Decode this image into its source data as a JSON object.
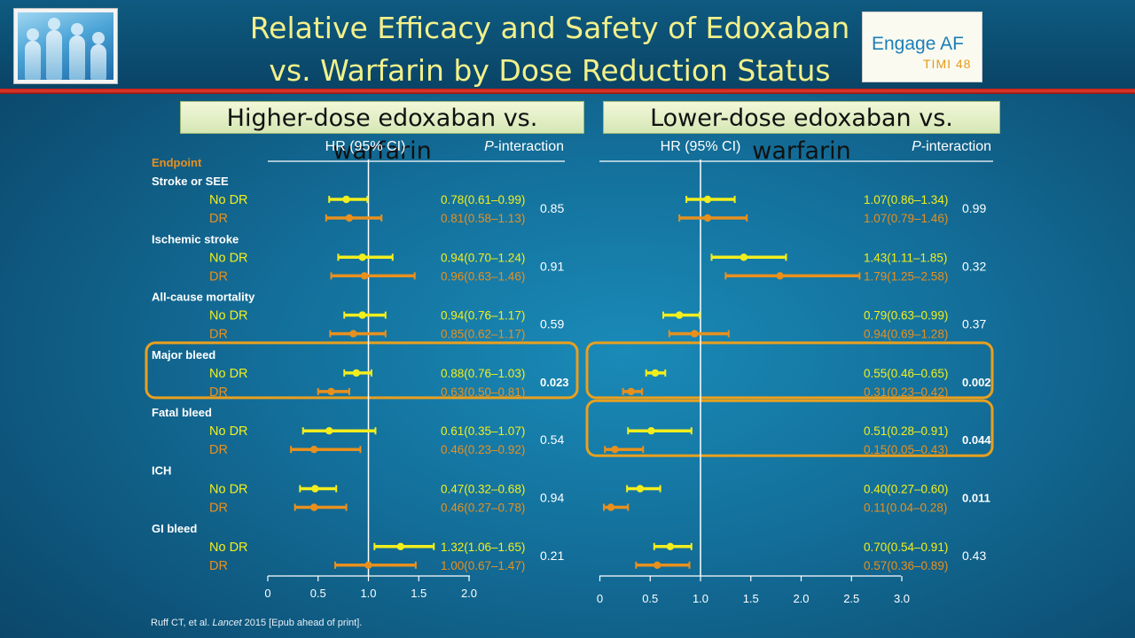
{
  "title_line1": "Relative Efficacy and Safety of Edoxaban",
  "title_line2": "vs. Warfarin by Dose Reduction Status",
  "logo_right": {
    "line1": "Engage AF",
    "line2": "TIMI 48"
  },
  "panels": [
    {
      "header": "Higher-dose edoxaban vs. warfarin"
    },
    {
      "header": "Lower-dose edoxaban vs. warfarin"
    }
  ],
  "footnote": {
    "authors": "Ruff CT, et al.",
    "journal": "Lancet",
    "rest": "2015 [Epub ahead of print]."
  },
  "colors": {
    "no_dr": "#f2ee1e",
    "dr": "#e8901e",
    "highlight": "#e8a020",
    "title": "#f2f08a"
  },
  "chart_data": {
    "type": "forest",
    "endpoint_label": "Endpoint",
    "column_hr_label": "HR (95% CI)",
    "column_p_label_italic": "P",
    "column_p_label_rest": "-interaction",
    "groups": [
      "No DR",
      "DR"
    ],
    "panels": [
      {
        "name": "Higher-dose edoxaban vs. warfarin",
        "xlim": [
          0,
          2.0
        ],
        "ticks": [
          "0",
          "0.5",
          "1.0",
          "1.5",
          "2.0"
        ],
        "tick_values": [
          0,
          0.5,
          1.0,
          1.5,
          2.0
        ],
        "endpoints": [
          {
            "name": "Stroke or SEE",
            "p": "0.85",
            "bold": false,
            "highlight": false,
            "rows": [
              {
                "group": "No DR",
                "hr": 0.78,
                "lo": 0.61,
                "hi": 0.99,
                "text": "0.78(0.61–0.99)"
              },
              {
                "group": "DR",
                "hr": 0.81,
                "lo": 0.58,
                "hi": 1.13,
                "text": "0.81(0.58–1.13)"
              }
            ]
          },
          {
            "name": "Ischemic stroke",
            "p": "0.91",
            "bold": false,
            "highlight": false,
            "rows": [
              {
                "group": "No DR",
                "hr": 0.94,
                "lo": 0.7,
                "hi": 1.24,
                "text": "0.94(0.70–1.24)"
              },
              {
                "group": "DR",
                "hr": 0.96,
                "lo": 0.63,
                "hi": 1.46,
                "text": "0.96(0.63–1.46)"
              }
            ]
          },
          {
            "name": "All-cause mortality",
            "p": "0.59",
            "bold": false,
            "highlight": false,
            "rows": [
              {
                "group": "No DR",
                "hr": 0.94,
                "lo": 0.76,
                "hi": 1.17,
                "text": "0.94(0.76–1.17)"
              },
              {
                "group": "DR",
                "hr": 0.85,
                "lo": 0.62,
                "hi": 1.17,
                "text": "0.85(0.62–1.17)"
              }
            ]
          },
          {
            "name": "Major bleed",
            "p": "0.023",
            "bold": true,
            "highlight": true,
            "rows": [
              {
                "group": "No DR",
                "hr": 0.88,
                "lo": 0.76,
                "hi": 1.03,
                "text": "0.88(0.76–1.03)"
              },
              {
                "group": "DR",
                "hr": 0.63,
                "lo": 0.5,
                "hi": 0.81,
                "text": "0.63(0.50–0.81)"
              }
            ]
          },
          {
            "name": "Fatal bleed",
            "p": "0.54",
            "bold": false,
            "highlight": false,
            "rows": [
              {
                "group": "No DR",
                "hr": 0.61,
                "lo": 0.35,
                "hi": 1.07,
                "text": "0.61(0.35–1.07)"
              },
              {
                "group": "DR",
                "hr": 0.46,
                "lo": 0.23,
                "hi": 0.92,
                "text": "0.46(0.23–0.92)"
              }
            ]
          },
          {
            "name": "ICH",
            "p": "0.94",
            "bold": false,
            "highlight": false,
            "rows": [
              {
                "group": "No DR",
                "hr": 0.47,
                "lo": 0.32,
                "hi": 0.68,
                "text": "0.47(0.32–0.68)"
              },
              {
                "group": "DR",
                "hr": 0.46,
                "lo": 0.27,
                "hi": 0.78,
                "text": "0.46(0.27–0.78)"
              }
            ]
          },
          {
            "name": "GI bleed",
            "p": "0.21",
            "bold": false,
            "highlight": false,
            "rows": [
              {
                "group": "No DR",
                "hr": 1.32,
                "lo": 1.06,
                "hi": 1.65,
                "text": "1.32(1.06–1.65)"
              },
              {
                "group": "DR",
                "hr": 1.0,
                "lo": 0.67,
                "hi": 1.47,
                "text": "1.00(0.67–1.47)"
              }
            ]
          }
        ]
      },
      {
        "name": "Lower-dose edoxaban vs. warfarin",
        "xlim": [
          0,
          3.0
        ],
        "ticks": [
          "0",
          "0.5",
          "1.0",
          "1.5",
          "2.0",
          "2.5",
          "3.0"
        ],
        "tick_values": [
          0,
          0.5,
          1.0,
          1.5,
          2.0,
          2.5,
          3.0
        ],
        "endpoints": [
          {
            "name": "Stroke or SEE",
            "p": "0.99",
            "bold": false,
            "highlight": false,
            "rows": [
              {
                "group": "No DR",
                "hr": 1.07,
                "lo": 0.86,
                "hi": 1.34,
                "text": "1.07(0.86–1.34)"
              },
              {
                "group": "DR",
                "hr": 1.07,
                "lo": 0.79,
                "hi": 1.46,
                "text": "1.07(0.79–1.46)"
              }
            ]
          },
          {
            "name": "Ischemic stroke",
            "p": "0.32",
            "bold": false,
            "highlight": false,
            "rows": [
              {
                "group": "No DR",
                "hr": 1.43,
                "lo": 1.11,
                "hi": 1.85,
                "text": "1.43(1.11–1.85)"
              },
              {
                "group": "DR",
                "hr": 1.79,
                "lo": 1.25,
                "hi": 2.58,
                "text": "1.79(1.25–2.58)"
              }
            ]
          },
          {
            "name": "All-cause mortality",
            "p": "0.37",
            "bold": false,
            "highlight": false,
            "rows": [
              {
                "group": "No DR",
                "hr": 0.79,
                "lo": 0.63,
                "hi": 0.99,
                "text": "0.79(0.63–0.99)"
              },
              {
                "group": "DR",
                "hr": 0.94,
                "lo": 0.69,
                "hi": 1.28,
                "text": "0.94(0.69–1.28)"
              }
            ]
          },
          {
            "name": "Major bleed",
            "p": "0.002",
            "bold": true,
            "highlight": true,
            "rows": [
              {
                "group": "No DR",
                "hr": 0.55,
                "lo": 0.46,
                "hi": 0.65,
                "text": "0.55(0.46–0.65)"
              },
              {
                "group": "DR",
                "hr": 0.31,
                "lo": 0.23,
                "hi": 0.42,
                "text": "0.31(0.23–0.42)"
              }
            ]
          },
          {
            "name": "Fatal bleed",
            "p": "0.044",
            "bold": true,
            "highlight": true,
            "rows": [
              {
                "group": "No DR",
                "hr": 0.51,
                "lo": 0.28,
                "hi": 0.91,
                "text": "0.51(0.28–0.91)"
              },
              {
                "group": "DR",
                "hr": 0.15,
                "lo": 0.05,
                "hi": 0.43,
                "text": "0.15(0.05–0.43)"
              }
            ]
          },
          {
            "name": "ICH",
            "p": "0.011",
            "bold": true,
            "highlight": false,
            "rows": [
              {
                "group": "No DR",
                "hr": 0.4,
                "lo": 0.27,
                "hi": 0.6,
                "text": "0.40(0.27–0.60)"
              },
              {
                "group": "DR",
                "hr": 0.11,
                "lo": 0.04,
                "hi": 0.28,
                "text": "0.11(0.04–0.28)"
              }
            ]
          },
          {
            "name": "GI bleed",
            "p": "0.43",
            "bold": false,
            "highlight": false,
            "rows": [
              {
                "group": "No DR",
                "hr": 0.7,
                "lo": 0.54,
                "hi": 0.91,
                "text": "0.70(0.54–0.91)"
              },
              {
                "group": "DR",
                "hr": 0.57,
                "lo": 0.36,
                "hi": 0.89,
                "text": "0.57(0.36–0.89)"
              }
            ]
          }
        ]
      }
    ]
  }
}
